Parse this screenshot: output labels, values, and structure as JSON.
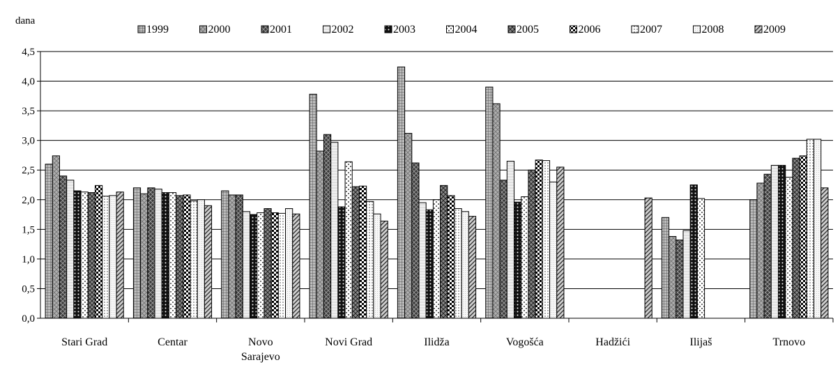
{
  "chart_data": {
    "type": "bar",
    "title": "",
    "ylabel": "dana",
    "xlabel": "",
    "ylim": [
      0,
      4.5
    ],
    "yticks": [
      "0,0",
      "0,5",
      "1,0",
      "1,5",
      "2,0",
      "2,5",
      "3,0",
      "3,5",
      "4,0",
      "4,5"
    ],
    "grid": true,
    "legend_position": "top",
    "categories": [
      "Stari Grad",
      "Centar",
      "Novo Sarajevo",
      "Novi Grad",
      "Ilidža",
      "Vogošća",
      "Hadžići",
      "Ilijaš",
      "Trnovo"
    ],
    "category_lines": [
      [
        "Stari Grad"
      ],
      [
        "Centar"
      ],
      [
        "Novo",
        "Sarajevo"
      ],
      [
        "Novi Grad"
      ],
      [
        "Ilidža"
      ],
      [
        "Vogošća"
      ],
      [
        "Hadžići"
      ],
      [
        "Ilijaš"
      ],
      [
        "Trnovo"
      ]
    ],
    "series": [
      {
        "name": "1999",
        "pattern": "grid",
        "values": [
          2.6,
          2.2,
          2.15,
          3.78,
          4.24,
          3.9,
          null,
          1.7,
          2.0
        ]
      },
      {
        "name": "2000",
        "pattern": "crosshatch-gray",
        "values": [
          2.74,
          2.1,
          2.08,
          2.82,
          3.12,
          3.62,
          null,
          1.38,
          2.28
        ]
      },
      {
        "name": "2001",
        "pattern": "dark-cross",
        "values": [
          2.4,
          2.2,
          2.08,
          3.1,
          2.62,
          2.33,
          null,
          1.32,
          2.43
        ]
      },
      {
        "name": "2002",
        "pattern": "light-lines",
        "values": [
          2.33,
          2.18,
          1.8,
          2.97,
          1.95,
          2.65,
          null,
          1.48,
          2.58
        ]
      },
      {
        "name": "2003",
        "pattern": "black-dots",
        "values": [
          2.15,
          2.12,
          1.75,
          1.88,
          1.83,
          1.96,
          null,
          2.25,
          2.58
        ]
      },
      {
        "name": "2004",
        "pattern": "sparse-dots",
        "values": [
          2.13,
          2.12,
          1.78,
          2.64,
          2.0,
          2.05,
          null,
          2.02,
          2.38
        ]
      },
      {
        "name": "2005",
        "pattern": "diagonal-cross",
        "values": [
          2.12,
          2.07,
          1.85,
          2.22,
          2.24,
          2.5,
          null,
          null,
          2.7
        ]
      },
      {
        "name": "2006",
        "pattern": "checker",
        "values": [
          2.24,
          2.08,
          1.78,
          2.23,
          2.07,
          2.67,
          null,
          null,
          2.74
        ]
      },
      {
        "name": "2007",
        "pattern": "fine-dots",
        "values": [
          2.06,
          1.98,
          1.77,
          1.97,
          1.85,
          2.66,
          null,
          null,
          3.02
        ]
      },
      {
        "name": "2008",
        "pattern": "light-dense",
        "values": [
          2.07,
          2.0,
          1.85,
          1.76,
          1.8,
          2.3,
          null,
          null,
          3.02
        ]
      },
      {
        "name": "2009",
        "pattern": "diagonal",
        "values": [
          2.13,
          1.9,
          1.76,
          1.64,
          1.72,
          2.55,
          2.03,
          null,
          2.2
        ]
      }
    ]
  }
}
